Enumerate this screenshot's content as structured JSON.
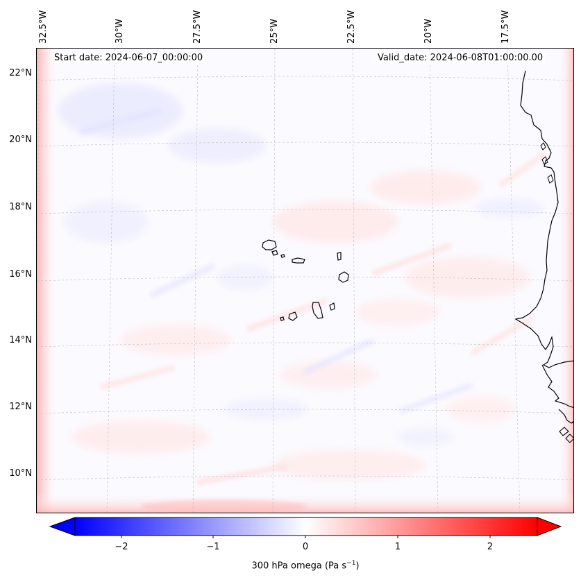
{
  "map": {
    "start_date": "Start date: 2024-06-07_00:00:00",
    "valid_date": "Valid_date: 2024-06-08T01:00:00.00",
    "lon_labels": [
      "32.5°W",
      "30°W",
      "27.5°W",
      "25°W",
      "22.5°W",
      "20°W",
      "17.5°W"
    ],
    "lat_labels": [
      "22°N",
      "20°N",
      "18°N",
      "16°N",
      "14°N",
      "12°N",
      "10°N"
    ],
    "gridlines": true
  },
  "colorbar": {
    "label_prefix": "300 hPa omega (Pa s",
    "label_exp": "−1",
    "label_suffix": ")",
    "ticks": [
      "−2",
      "−1",
      "0",
      "1",
      "2"
    ],
    "range": [
      -2.6,
      2.6
    ],
    "colors": {
      "min": "#0000ff",
      "mid": "#ffffff",
      "max": "#ff0000"
    },
    "extend": "both"
  }
}
